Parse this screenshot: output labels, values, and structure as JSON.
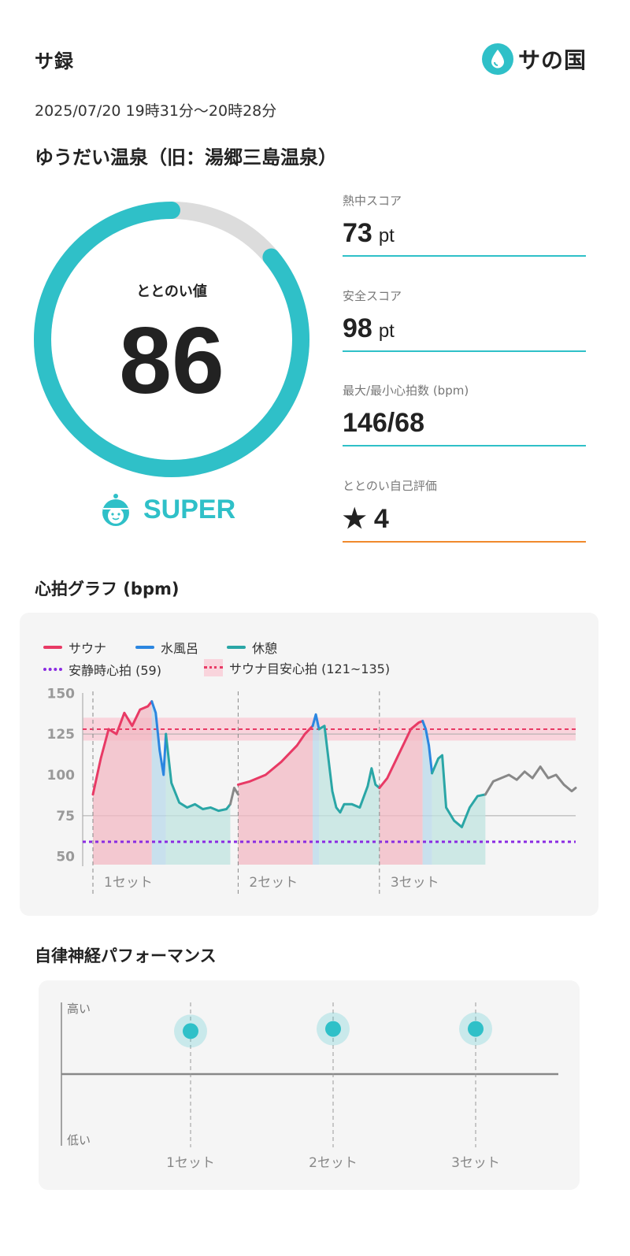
{
  "header": {
    "app_title": "サ録",
    "logo_text": "サの国"
  },
  "session": {
    "datetime": "2025/07/20 19時31分〜20時28分",
    "facility": "ゆうだい温泉（旧：湯郷三島温泉）"
  },
  "gauge": {
    "label": "ととのい値",
    "value": "86",
    "max": 100,
    "rank": "SUPER",
    "colors": {
      "fill": "#2fc0c8",
      "track": "#dcdcdc"
    }
  },
  "stats": [
    {
      "label": "熱中スコア",
      "value": "73",
      "unit": "pt"
    },
    {
      "label": "安全スコア",
      "value": "98",
      "unit": "pt"
    },
    {
      "label": "最大/最小心拍数 (bpm)",
      "value": "146/68",
      "unit": ""
    },
    {
      "label": "ととのい自己評価",
      "value": "★ 4",
      "unit": ""
    }
  ],
  "heart_rate": {
    "title": "心拍グラフ (bpm)",
    "legend": {
      "sauna": "サウナ",
      "cold_bath": "水風呂",
      "rest": "休憩",
      "resting_hr": "安静時心拍 (59)",
      "target_hr": "サウナ目安心拍 (121~135)"
    },
    "colors": {
      "sauna": "#e83a65",
      "cold_bath": "#2b86e0",
      "rest": "#2aa6a6",
      "other": "#888888",
      "resting": "#8a2be2"
    }
  },
  "chart_data": {
    "type": "line",
    "x_unit": "minutes from start",
    "ylim": [
      45,
      155
    ],
    "yticks": [
      150,
      125,
      100,
      75,
      50
    ],
    "resting_hr": 59,
    "target_band": [
      121,
      135
    ],
    "target_line": 128,
    "set_labels": [
      "1セット",
      "2セット",
      "3セット"
    ],
    "set_starts": [
      0,
      18.5,
      36.5
    ],
    "phases": [
      {
        "type": "sauna",
        "x": [
          0,
          1,
          2,
          3,
          4,
          5,
          6,
          7,
          7.5
        ],
        "y": [
          88,
          110,
          128,
          125,
          138,
          130,
          140,
          142,
          145
        ]
      },
      {
        "type": "cold_bath",
        "x": [
          7.5,
          8,
          8.5,
          9,
          9.3
        ],
        "y": [
          145,
          138,
          115,
          100,
          125
        ]
      },
      {
        "type": "rest",
        "x": [
          9.3,
          10,
          11,
          12,
          13,
          14,
          15,
          16,
          17,
          17.5
        ],
        "y": [
          125,
          95,
          83,
          80,
          82,
          79,
          80,
          78,
          79,
          82
        ]
      },
      {
        "type": "other",
        "x": [
          17.5,
          18,
          18.5
        ],
        "y": [
          82,
          92,
          88
        ]
      },
      {
        "type": "sauna",
        "x": [
          18.5,
          20,
          22,
          24,
          26,
          27,
          28
        ],
        "y": [
          94,
          96,
          100,
          108,
          118,
          125,
          130
        ]
      },
      {
        "type": "cold_bath",
        "x": [
          28,
          28.4,
          28.8
        ],
        "y": [
          130,
          137,
          128
        ]
      },
      {
        "type": "rest",
        "x": [
          28.8,
          29.5,
          30,
          30.5,
          31,
          31.5,
          32,
          33,
          34,
          35,
          35.5,
          36,
          36.5
        ],
        "y": [
          128,
          130,
          110,
          90,
          80,
          77,
          82,
          82,
          80,
          93,
          104,
          94,
          92
        ]
      },
      {
        "type": "sauna",
        "x": [
          36.5,
          37.5,
          38.5,
          39.5,
          40.5,
          41.5,
          42
        ],
        "y": [
          92,
          98,
          108,
          118,
          128,
          132,
          133
        ]
      },
      {
        "type": "cold_bath",
        "x": [
          42,
          42.4,
          42.8,
          43.2
        ],
        "y": [
          133,
          128,
          118,
          101
        ]
      },
      {
        "type": "rest",
        "x": [
          43.2,
          44,
          44.5,
          45,
          46,
          47,
          48,
          49,
          50
        ],
        "y": [
          101,
          110,
          112,
          80,
          72,
          68,
          80,
          87,
          88
        ]
      },
      {
        "type": "other",
        "x": [
          50,
          51,
          52,
          53,
          54,
          55,
          56,
          57,
          58,
          59,
          60,
          61,
          61.5
        ],
        "y": [
          88,
          96,
          98,
          100,
          97,
          102,
          98,
          105,
          98,
          100,
          94,
          90,
          92
        ]
      }
    ]
  },
  "autonomic": {
    "title": "自律神経パフォーマンス",
    "high_label": "高い",
    "low_label": "低い",
    "chart_data": {
      "type": "scatter",
      "categories": [
        "1セット",
        "2セット",
        "3セット"
      ],
      "values": [
        0.78,
        0.82,
        0.82
      ],
      "ylim": [
        -1,
        1
      ],
      "color": "#2fc0c8"
    }
  }
}
